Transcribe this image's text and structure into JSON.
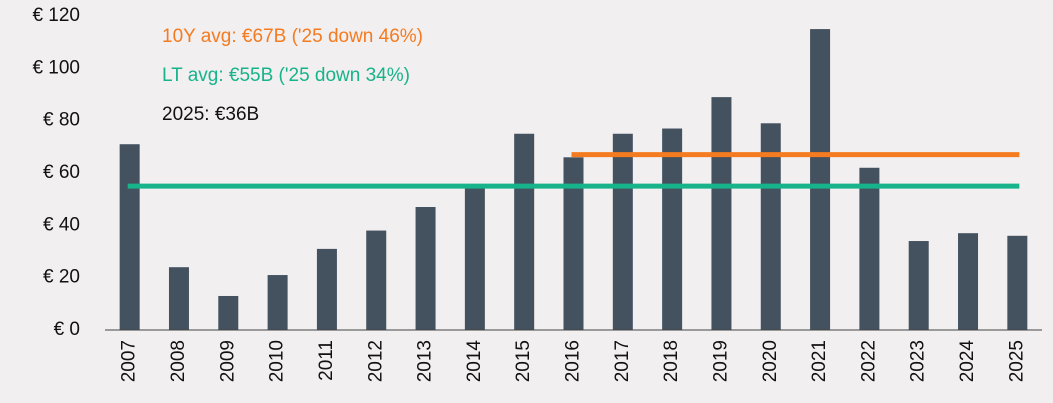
{
  "chart_data": {
    "type": "bar",
    "categories": [
      "2007",
      "2008",
      "2009",
      "2010",
      "2011",
      "2012",
      "2013",
      "2014",
      "2015",
      "2016",
      "2017",
      "2018",
      "2019",
      "2020",
      "2021",
      "2022",
      "2023",
      "2024",
      "2025"
    ],
    "values": [
      71,
      24,
      13,
      21,
      31,
      38,
      47,
      55,
      75,
      66,
      75,
      77,
      89,
      79,
      115,
      62,
      34,
      37,
      36
    ],
    "color": "#44515f",
    "ylim": [
      0,
      120
    ],
    "yticks": [
      {
        "value": 0,
        "label": "€ 0"
      },
      {
        "value": 20,
        "label": "€ 20"
      },
      {
        "value": 40,
        "label": "€ 40"
      },
      {
        "value": 60,
        "label": "€ 60"
      },
      {
        "value": 80,
        "label": "€ 80"
      },
      {
        "value": 100,
        "label": "€ 100"
      },
      {
        "value": 120,
        "label": "€ 120"
      }
    ],
    "reference_lines": [
      {
        "value": 67,
        "color": "#f47b20",
        "from": "2016",
        "to": "2025"
      },
      {
        "value": 55,
        "color": "#17b38a",
        "from": "2007",
        "to": "2025"
      }
    ],
    "annotations": [
      {
        "text": "10Y avg: €67B ('25 down 46%)",
        "color": "#f47b20"
      },
      {
        "text": "LT avg: €55B ('25 down 34%)",
        "color": "#17b38a"
      },
      {
        "text": "2025: €36B",
        "color": "#111111"
      }
    ]
  }
}
